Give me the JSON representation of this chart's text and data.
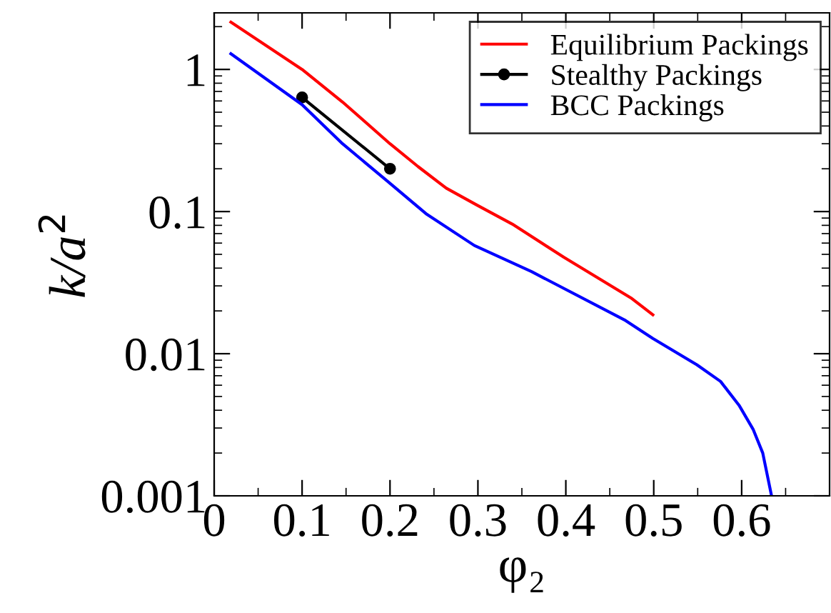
{
  "chart_data": {
    "type": "line",
    "xlabel": "φ₂",
    "ylabel": "k/a$^{2}$",
    "log": "y",
    "xlim": [
      0,
      0.7
    ],
    "xticks": [
      0,
      0.1,
      0.2,
      0.3,
      0.4,
      0.5,
      0.6
    ],
    "ylim": [
      0.001,
      2.5
    ],
    "yticks": [
      0.001,
      0.01,
      0.1,
      1
    ],
    "legend": "top right",
    "grid": false,
    "series": [
      {
        "name": "Equilibrium Packings",
        "color": "#ff0000",
        "marker": "none",
        "x": [
          0.019,
          0.1,
          0.146,
          0.2,
          0.232,
          0.264,
          0.299,
          0.339,
          0.398,
          0.468,
          0.474,
          0.499
        ],
        "values": [
          2.15,
          1.0,
          0.59,
          0.3,
          0.207,
          0.146,
          0.111,
          0.0817,
          0.0476,
          0.026,
          0.0247,
          0.0188
        ]
      },
      {
        "name": "Stealthy Packings",
        "color": "#000000",
        "marker": "circle",
        "x": [
          0.1,
          0.2
        ],
        "values": [
          0.635,
          0.2
        ]
      },
      {
        "name": "BCC Packings",
        "color": "#0000ff",
        "marker": "none",
        "x": [
          0.019,
          0.1,
          0.146,
          0.2,
          0.242,
          0.296,
          0.361,
          0.468,
          0.499,
          0.549,
          0.576,
          0.597,
          0.613,
          0.624,
          0.634
        ],
        "values": [
          1.29,
          0.565,
          0.3,
          0.158,
          0.0955,
          0.0577,
          0.0378,
          0.0171,
          0.0128,
          0.00836,
          0.00638,
          0.00434,
          0.00294,
          0.002,
          0.001
        ]
      }
    ]
  }
}
